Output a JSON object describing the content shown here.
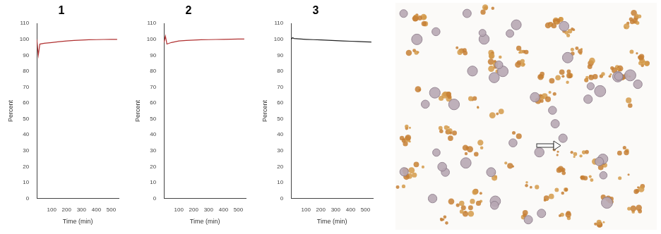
{
  "chart_data": [
    {
      "type": "line",
      "title": "1",
      "xlabel": "Time (min)",
      "ylabel": "Percent",
      "x": [
        0,
        10,
        20,
        50,
        100,
        150,
        200,
        250,
        300,
        350,
        400,
        450,
        500,
        540
      ],
      "series": [
        {
          "name": "1",
          "color": "#b03030",
          "values": [
            100,
            90,
            97,
            97.5,
            98,
            98.5,
            99,
            99.3,
            99.5,
            99.7,
            99.8,
            99.9,
            100,
            100
          ]
        }
      ],
      "xlim": [
        0,
        550
      ],
      "xticks": [
        100,
        200,
        300,
        400,
        500
      ],
      "ylim": [
        0,
        110
      ],
      "yticks": [
        0,
        10,
        20,
        30,
        40,
        50,
        60,
        70,
        80,
        90,
        100,
        110
      ],
      "grid": false
    },
    {
      "type": "line",
      "title": "2",
      "xlabel": "Time (min)",
      "ylabel": "Percent",
      "x": [
        0,
        10,
        20,
        50,
        100,
        150,
        200,
        250,
        300,
        350,
        400,
        450,
        500,
        540
      ],
      "series": [
        {
          "name": "2",
          "color": "#b03030",
          "values": [
            98,
            102,
            97,
            98,
            99,
            99.3,
            99.5,
            99.7,
            99.8,
            99.9,
            100,
            100.1,
            100.2,
            100.2
          ]
        }
      ],
      "xlim": [
        0,
        550
      ],
      "xticks": [
        100,
        200,
        300,
        400,
        500
      ],
      "ylim": [
        0,
        110
      ],
      "yticks": [
        0,
        10,
        20,
        30,
        40,
        50,
        60,
        70,
        80,
        90,
        100,
        110
      ],
      "grid": false
    },
    {
      "type": "line",
      "title": "3",
      "xlabel": "Time (min)",
      "ylabel": "Percent",
      "x": [
        0,
        10,
        20,
        50,
        100,
        150,
        200,
        250,
        300,
        350,
        400,
        450,
        500,
        540
      ],
      "series": [
        {
          "name": "3",
          "color": "#222222",
          "values": [
            100,
            101,
            100.5,
            100.3,
            100,
            99.8,
            99.6,
            99.4,
            99.2,
            99,
            98.8,
            98.6,
            98.4,
            98.3
          ]
        }
      ],
      "xlim": [
        0,
        550
      ],
      "xticks": [
        100,
        200,
        300,
        400,
        500
      ],
      "ylim": [
        0,
        110
      ],
      "yticks": [
        0,
        10,
        20,
        30,
        40,
        50,
        60,
        70,
        80,
        90,
        100,
        110
      ],
      "grid": false
    }
  ]
}
